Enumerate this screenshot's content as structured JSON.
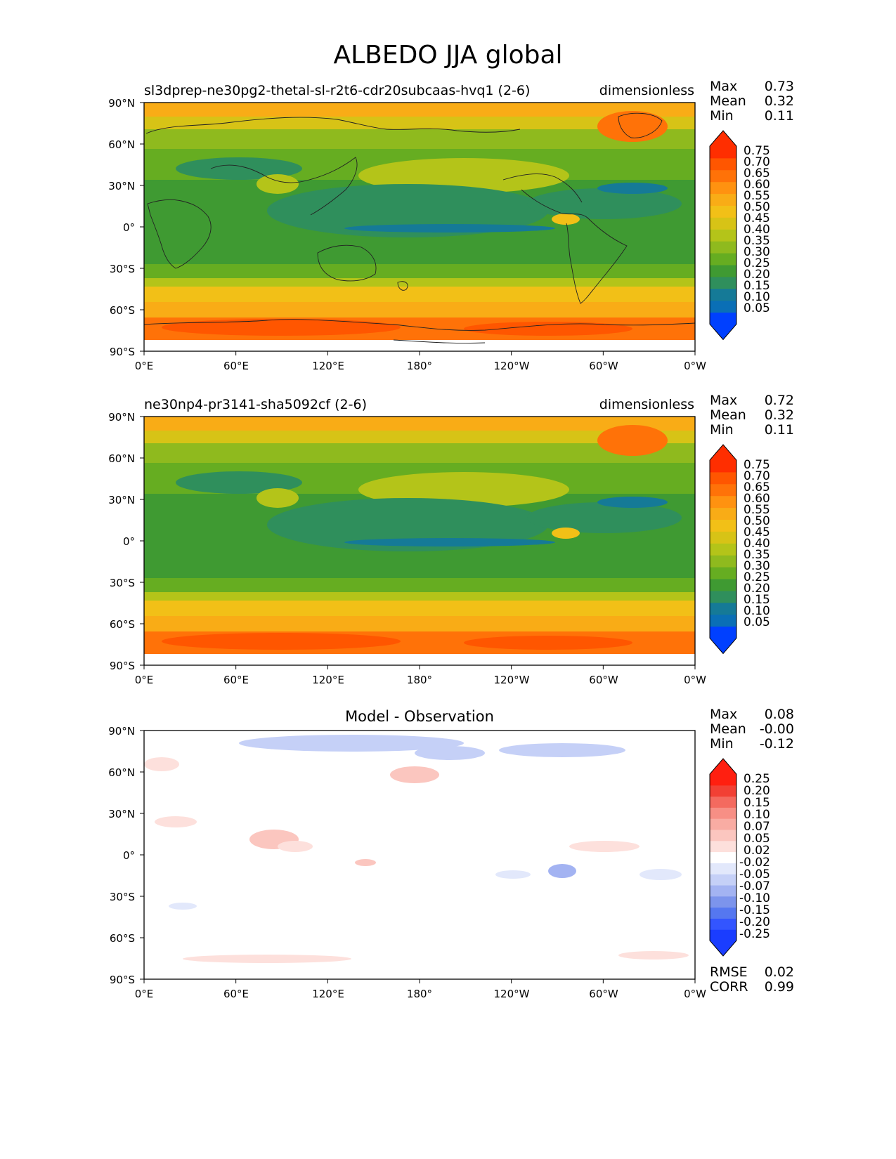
{
  "figure": {
    "title": "ALBEDO JJA global"
  },
  "x_ticks": [
    "0°E",
    "60°E",
    "120°E",
    "180°",
    "120°W",
    "60°W",
    "0°W"
  ],
  "y_ticks": [
    "90°N",
    "60°N",
    "30°N",
    "0°",
    "30°S",
    "60°S",
    "90°S"
  ],
  "colors": {
    "albedo_levels": [
      "#0040ff",
      "#0a6fb6",
      "#157a97",
      "#2f8f5c",
      "#3f9a32",
      "#66ad21",
      "#8fba1e",
      "#b4c419",
      "#d7c316",
      "#f2c017",
      "#f9ac16",
      "#ff9210",
      "#ff7208",
      "#ff5600",
      "#ff2e00"
    ],
    "diff_levels": [
      "#1a3dff",
      "#3355ff",
      "#5577f0",
      "#7c94ec",
      "#a3b3f2",
      "#c5d0f7",
      "#e2e8fb",
      "#ffffff",
      "#fde0dc",
      "#fbc6bf",
      "#f9aca3",
      "#f78f85",
      "#f46a5f",
      "#f24034",
      "#ff1f10"
    ]
  },
  "panels": [
    {
      "left_title": "sl3dprep-ne30pg2-thetal-sl-r2t6-cdr20subcaas-hvq1 (2-6)",
      "right_title": "dimensionless",
      "stats": [
        {
          "label": "Max",
          "value": "0.73"
        },
        {
          "label": "Mean",
          "value": "0.32"
        },
        {
          "label": "Min",
          "value": "0.11"
        }
      ],
      "colorbar_labels": [
        "0.75",
        "0.70",
        "0.65",
        "0.60",
        "0.55",
        "0.50",
        "0.45",
        "0.40",
        "0.35",
        "0.30",
        "0.25",
        "0.20",
        "0.15",
        "0.10",
        "0.05"
      ]
    },
    {
      "left_title": "ne30np4-pr3141-sha5092cf (2-6)",
      "right_title": "dimensionless",
      "stats": [
        {
          "label": "Max",
          "value": "0.72"
        },
        {
          "label": "Mean",
          "value": "0.32"
        },
        {
          "label": "Min",
          "value": "0.11"
        }
      ],
      "colorbar_labels": [
        "0.75",
        "0.70",
        "0.65",
        "0.60",
        "0.55",
        "0.50",
        "0.45",
        "0.40",
        "0.35",
        "0.30",
        "0.25",
        "0.20",
        "0.15",
        "0.10",
        "0.05"
      ]
    },
    {
      "center_title": "Model - Observation",
      "stats": [
        {
          "label": "Max",
          "value": "0.08"
        },
        {
          "label": "Mean",
          "value": "-0.00"
        },
        {
          "label": "Min",
          "value": "-0.12"
        }
      ],
      "colorbar_labels": [
        "0.25",
        "0.20",
        "0.15",
        "0.10",
        "0.07",
        "0.05",
        "0.02",
        "-0.02",
        "-0.05",
        "-0.07",
        "-0.10",
        "-0.15",
        "-0.20",
        "-0.25"
      ],
      "footer_stats": [
        {
          "label": "RMSE",
          "value": "0.02"
        },
        {
          "label": "CORR",
          "value": "0.99"
        }
      ]
    }
  ]
}
